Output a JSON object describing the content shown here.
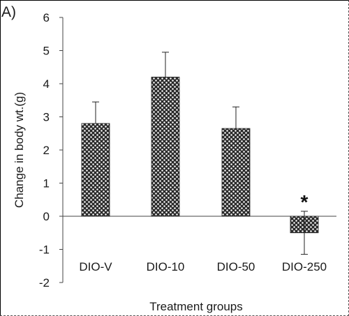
{
  "panel_label": "A)",
  "chart_data": {
    "type": "bar",
    "title": "",
    "xlabel": "Treatment groups",
    "ylabel": "Change in body wt.(g)",
    "categories": [
      "DIO-V",
      "DIO-10",
      "DIO-50",
      "DIO-250"
    ],
    "values": [
      2.8,
      4.2,
      2.65,
      -0.5
    ],
    "errors": [
      0.65,
      0.75,
      0.65,
      0.65
    ],
    "significance": [
      "",
      "",
      "",
      "*"
    ],
    "ylim": [
      -2,
      6
    ],
    "yticks": [
      -2,
      -1,
      0,
      1,
      2,
      3,
      4,
      5,
      6
    ],
    "grid": false,
    "legend": "none",
    "bar_pattern": "crosshatch-dotted"
  }
}
